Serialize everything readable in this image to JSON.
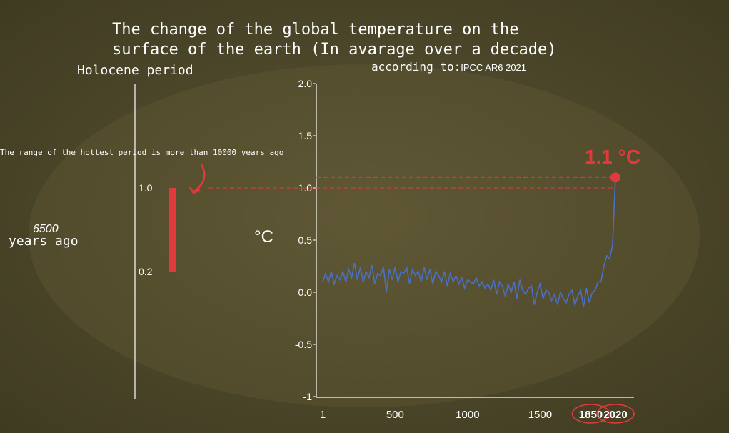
{
  "title_line1": "The change of the global temperature on the",
  "title_line2": "surface of the earth (In avarage over a decade)",
  "subtitle_prefix": "according to:",
  "subtitle_source": "IPCC AR6 2021",
  "holocene": {
    "label": "Holocene period",
    "range_note": "The range of the hottest period is more than 10000 years ago",
    "years_value": "6500",
    "years_label": "years ago",
    "ticks": [
      "1.0",
      "0.2"
    ],
    "range_low": 0.2,
    "range_high": 1.0
  },
  "colors": {
    "line": "#4a6fc4",
    "accent": "#e2393c",
    "axis": "#ffffff"
  },
  "chart_data": {
    "type": "line",
    "ylabel": "°C",
    "ylim": [
      -1,
      2
    ],
    "yticks": [
      "2.0",
      "1.5",
      "1.0",
      "0.5",
      "0.0",
      "-0.5",
      "-1"
    ],
    "ytick_values": [
      2.0,
      1.5,
      1.0,
      0.5,
      0.0,
      -0.5,
      -1.0
    ],
    "xlim": [
      1,
      2020
    ],
    "xticks": [
      "1",
      "500",
      "1000",
      "1500",
      "1850",
      "2020"
    ],
    "xtick_values": [
      1,
      500,
      1000,
      1500,
      1850,
      2020
    ],
    "highlighted_xticks": [
      "1850",
      "2020"
    ],
    "annotation": "1.1 °C",
    "annotation_value": 1.1,
    "reference_value": 1.0,
    "series": [
      {
        "x": [
          1,
          20,
          40,
          60,
          80,
          100,
          120,
          140,
          160,
          180,
          200,
          220,
          240,
          260,
          280,
          300,
          320,
          340,
          360,
          380,
          400,
          420,
          440,
          460,
          480,
          500,
          520,
          540,
          560,
          580,
          600,
          620,
          640,
          660,
          680,
          700,
          720,
          740,
          760,
          780,
          800,
          820,
          840,
          860,
          880,
          900,
          920,
          940,
          960,
          980,
          1000,
          1020,
          1040,
          1060,
          1080,
          1100,
          1120,
          1140,
          1160,
          1180,
          1200,
          1220,
          1240,
          1260,
          1280,
          1300,
          1320,
          1340,
          1360,
          1380,
          1400,
          1420,
          1440,
          1460,
          1480,
          1500,
          1520,
          1540,
          1560,
          1580,
          1600,
          1620,
          1640,
          1660,
          1680,
          1700,
          1720,
          1740,
          1760,
          1780,
          1800,
          1820,
          1840,
          1860,
          1880,
          1900,
          1920,
          1940,
          1960,
          1980,
          2000,
          2010,
          2020
        ],
        "y": [
          0.1,
          0.18,
          0.1,
          0.2,
          0.08,
          0.16,
          0.12,
          0.2,
          0.1,
          0.22,
          0.14,
          0.28,
          0.12,
          0.24,
          0.1,
          0.2,
          0.14,
          0.26,
          0.08,
          0.18,
          0.16,
          0.24,
          0.0,
          0.22,
          0.12,
          0.24,
          0.1,
          0.2,
          0.18,
          0.24,
          0.08,
          0.22,
          0.16,
          0.2,
          0.1,
          0.24,
          0.12,
          0.22,
          0.08,
          0.2,
          0.16,
          0.1,
          0.2,
          0.06,
          0.18,
          0.1,
          0.16,
          0.08,
          0.14,
          0.04,
          0.12,
          0.1,
          0.08,
          0.14,
          0.06,
          0.1,
          0.04,
          0.08,
          0.02,
          0.12,
          -0.02,
          0.1,
          0.06,
          -0.04,
          0.08,
          0.0,
          0.1,
          -0.06,
          0.12,
          0.02,
          -0.02,
          0.04,
          0.06,
          -0.12,
          0.0,
          0.08,
          -0.06,
          0.02,
          0.0,
          -0.08,
          -0.02,
          -0.12,
          0.0,
          -0.06,
          -0.1,
          -0.02,
          0.02,
          -0.12,
          -0.04,
          0.02,
          -0.14,
          0.04,
          -0.1,
          0.0,
          0.02,
          0.1,
          0.1,
          0.25,
          0.35,
          0.32,
          0.45,
          0.8,
          1.1
        ]
      }
    ]
  }
}
